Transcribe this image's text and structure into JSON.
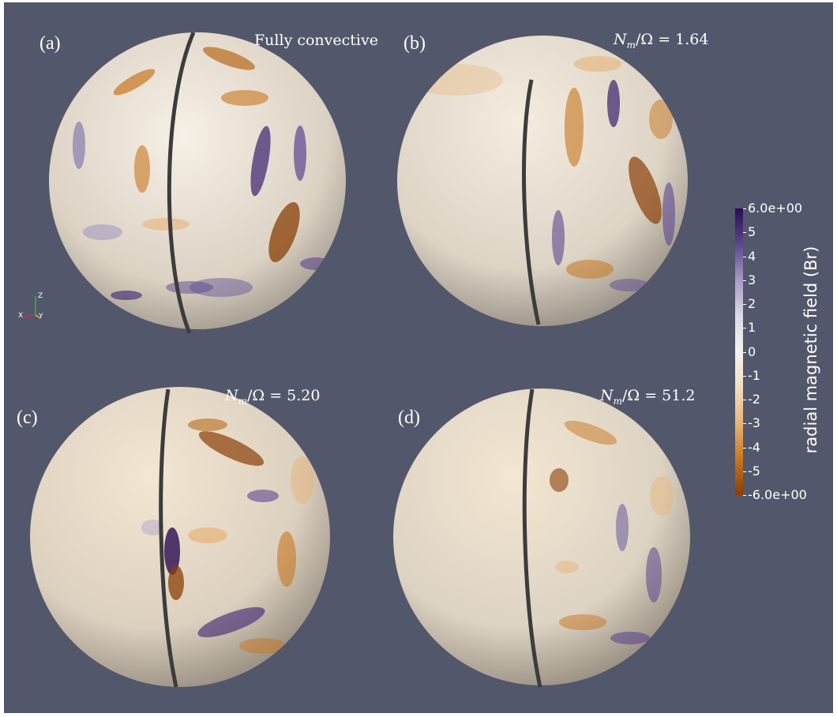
{
  "panels": [
    {
      "label": "(a)",
      "title": "Fully convective"
    },
    {
      "label": "(b)",
      "title_math": "N",
      "title_sub": "m",
      "title_rest": "/Ω = 1.64"
    },
    {
      "label": "(c)",
      "title_math": "N",
      "title_sub": "m",
      "title_rest": "/Ω = 5.20"
    },
    {
      "label": "(d)",
      "title_math": "N",
      "title_sub": "m",
      "title_rest": "/Ω = 51.2"
    }
  ],
  "colorbar": {
    "title": "radial magnetic field (Br)",
    "ticks": [
      "6.0e+00",
      "5",
      "4",
      "3",
      "2",
      "1",
      "0",
      "-1",
      "-2",
      "-3",
      "-4",
      "-5",
      "-6.0e+00"
    ],
    "range": [
      -6,
      6
    ],
    "colors": [
      "#8a3f06",
      "#c8761e",
      "#e8b477",
      "#f2ddc2",
      "#f4f2ee",
      "#ddd9e6",
      "#a79ac4",
      "#5c4690",
      "#2a0b52"
    ]
  },
  "axes": {
    "z": "Z",
    "x": "X",
    "y": "Y"
  }
}
